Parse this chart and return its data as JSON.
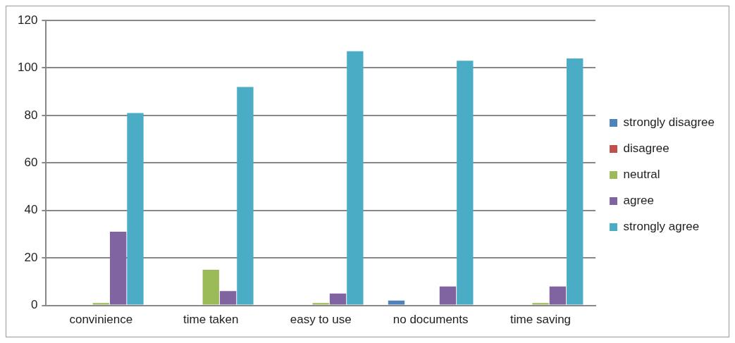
{
  "chart_data": {
    "type": "bar",
    "categories": [
      "convinience",
      "time taken",
      "easy to use",
      "no documents",
      "time saving"
    ],
    "series": [
      {
        "name": "strongly disagree",
        "color": "#4f81bd",
        "values": [
          0,
          0,
          0,
          2,
          0
        ]
      },
      {
        "name": "disagree",
        "color": "#c0504d",
        "values": [
          0,
          0,
          0,
          0,
          0
        ]
      },
      {
        "name": "neutral",
        "color": "#9bbb59",
        "values": [
          1,
          15,
          1,
          0,
          1
        ]
      },
      {
        "name": "agree",
        "color": "#8064a2",
        "values": [
          31,
          6,
          5,
          8,
          8
        ]
      },
      {
        "name": "strongly agree",
        "color": "#4bacc6",
        "values": [
          81,
          92,
          107,
          103,
          104
        ]
      }
    ],
    "ylim": [
      0,
      120
    ],
    "yticks": [
      0,
      20,
      40,
      60,
      80,
      100,
      120
    ],
    "grid": "y",
    "legend": "right"
  }
}
